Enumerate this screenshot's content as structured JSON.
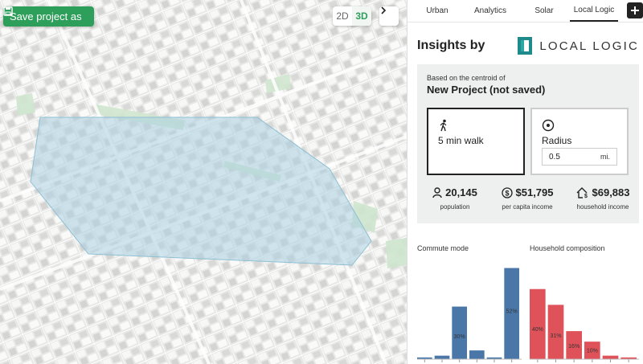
{
  "map": {
    "save_label": "Save project as",
    "view_options": [
      "2D",
      "3D"
    ],
    "active_view": "3D",
    "icons": {
      "save": "save-icon",
      "collapse": "chevron-right-icon"
    },
    "colors": {
      "accent": "#2e9e5b",
      "catchment": "#a9cfe0"
    }
  },
  "panel": {
    "tabs": [
      "Urban",
      "Analytics",
      "Solar",
      "Local Logic"
    ],
    "active_tab": "Local Logic",
    "add_icon": "plus-icon",
    "insights_title": "Insights by",
    "logo_text": "LOCAL LOGIC",
    "basis_label": "Based on the centroid of",
    "project_name": "New Project (not saved)",
    "modes": {
      "walk": {
        "label": "5 min walk",
        "icon": "walking-person-icon",
        "selected": true
      },
      "radius": {
        "label": "Radius",
        "icon": "target-icon",
        "value": "0.5",
        "unit": "mi."
      }
    },
    "stats": [
      {
        "value": "20,145",
        "label": "population",
        "icon": "person-icon"
      },
      {
        "value": "$51,795",
        "label": "per capita income",
        "icon": "dollar-icon"
      },
      {
        "value": "$69,883",
        "label": "household income",
        "icon": "house-dollar-icon"
      }
    ]
  },
  "chart_data": [
    {
      "type": "bar",
      "title": "Commute mode",
      "color": "#4a77a8",
      "values": [
        1,
        2,
        30,
        5,
        1,
        52
      ],
      "labels": [
        "",
        "",
        "30%",
        "",
        "",
        "52%"
      ],
      "ylim": [
        0,
        55
      ]
    },
    {
      "type": "bar",
      "title": "Household composition",
      "color": "#e0525a",
      "values": [
        40,
        31,
        16,
        10,
        2,
        1
      ],
      "labels": [
        "40%",
        "31%",
        "16%",
        "10%",
        "",
        ""
      ],
      "ylim": [
        0,
        55
      ]
    }
  ]
}
